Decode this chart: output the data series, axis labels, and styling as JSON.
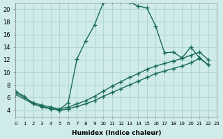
{
  "xlabel": "Humidex (Indice chaleur)",
  "bg_color": "#d0ecea",
  "grid_color": "#b0d8d4",
  "line_color": "#1a6b5a",
  "xlim": [
    0,
    23
  ],
  "ylim": [
    3,
    21
  ],
  "xticks": [
    0,
    1,
    2,
    3,
    4,
    5,
    6,
    7,
    8,
    9,
    10,
    11,
    12,
    13,
    14,
    15,
    16,
    17,
    18,
    19,
    20,
    21,
    22,
    23
  ],
  "yticks": [
    4,
    6,
    8,
    10,
    12,
    14,
    16,
    18,
    20
  ],
  "curve1_x": [
    0,
    1,
    2,
    3,
    4,
    5,
    6,
    7,
    8,
    9,
    10,
    11,
    12,
    13,
    14,
    15,
    16,
    17,
    18,
    19,
    20,
    21,
    22
  ],
  "curve1_y": [
    7.0,
    6.2,
    5.0,
    4.5,
    4.2,
    4.1,
    5.2,
    12.1,
    15.0,
    17.5,
    21.0,
    21.2,
    21.2,
    21.1,
    20.5,
    20.2,
    17.3,
    13.1,
    13.2,
    12.3,
    14.0,
    12.3,
    11.2
  ],
  "curve2_x": [
    0,
    2,
    3,
    4,
    5,
    6,
    7,
    8,
    9,
    10,
    11,
    12,
    13,
    14,
    15,
    16,
    17,
    18,
    19,
    20,
    21,
    22
  ],
  "curve2_y": [
    6.5,
    5.0,
    4.6,
    4.3,
    4.0,
    4.2,
    4.6,
    5.0,
    5.5,
    6.2,
    6.8,
    7.4,
    8.0,
    8.6,
    9.2,
    9.8,
    10.2,
    10.6,
    11.0,
    11.5,
    12.2,
    11.2
  ],
  "curve3_x": [
    0,
    2,
    3,
    4,
    5,
    6,
    7,
    8,
    9,
    10,
    11,
    12,
    13,
    14,
    15,
    16,
    17,
    18,
    19,
    20,
    21,
    22
  ],
  "curve3_y": [
    6.8,
    5.2,
    4.8,
    4.5,
    4.2,
    4.5,
    5.0,
    5.5,
    6.2,
    7.0,
    7.8,
    8.5,
    9.2,
    9.8,
    10.5,
    11.0,
    11.4,
    11.8,
    12.2,
    12.7,
    13.2,
    12.0
  ]
}
